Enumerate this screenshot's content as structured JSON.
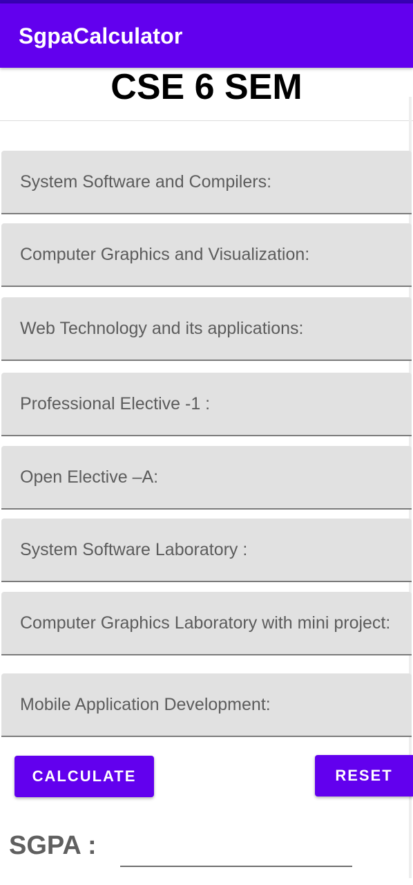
{
  "app_bar": {
    "title": "SgpaCalculator"
  },
  "header": {
    "semester_title": "CSE 6 SEM"
  },
  "subjects": [
    {
      "placeholder": "System Software and Compilers:",
      "value": ""
    },
    {
      "placeholder": "Computer Graphics and Visualization:",
      "value": ""
    },
    {
      "placeholder": "Web Technology and its applications:",
      "value": ""
    },
    {
      "placeholder": "Professional Elective -1 :",
      "value": ""
    },
    {
      "placeholder": "Open Elective –A:",
      "value": ""
    },
    {
      "placeholder": "System Software Laboratory :",
      "value": ""
    },
    {
      "placeholder": "Computer Graphics Laboratory with mini project:",
      "value": ""
    },
    {
      "placeholder": "Mobile Application Development:",
      "value": ""
    }
  ],
  "actions": {
    "calculate_label": "CALCULATE",
    "reset_label": "RESET"
  },
  "result": {
    "label": "SGPA :",
    "value": ""
  },
  "colors": {
    "primary": "#6200ee",
    "primary_dark": "#3700b3",
    "field_background": "#e1e1e1"
  }
}
